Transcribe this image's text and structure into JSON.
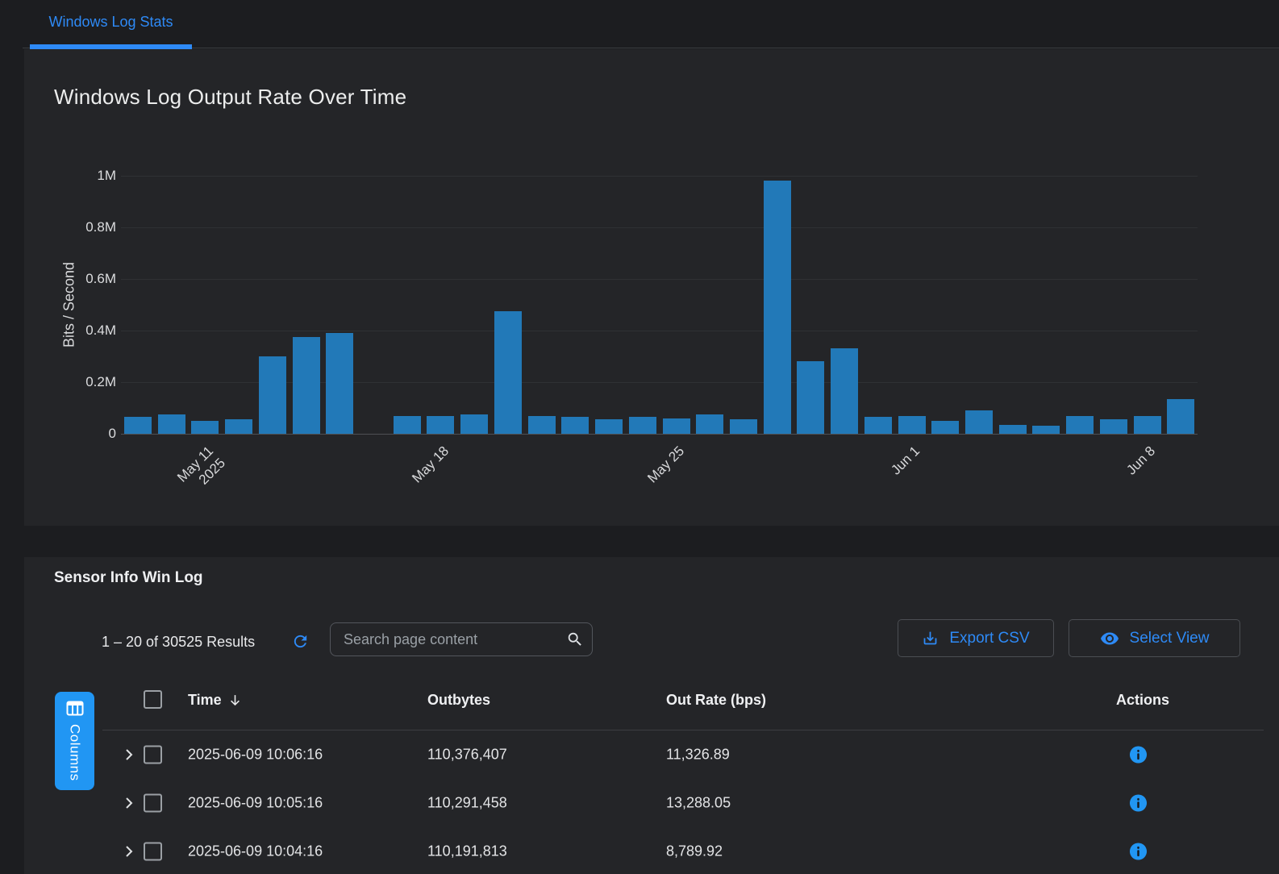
{
  "colors": {
    "accent": "#2e8af6",
    "primary_button": "#2196f3",
    "bar": "#2279b8",
    "page_background": "#1c1d20",
    "panel_background": "#242528",
    "gridline": "#2f3134",
    "axis_line": "#4e5054"
  },
  "tabs": [
    {
      "label": "Windows Log Stats",
      "active": true
    }
  ],
  "chart_data": {
    "type": "bar",
    "title": "Windows Log Output Rate Over Time",
    "xlabel": "",
    "ylabel": "Bits / Second",
    "ylim": [
      0,
      1000000
    ],
    "grid": true,
    "legend": false,
    "bar_color": "#2279b8",
    "x": [
      "2025-05-09",
      "2025-05-10",
      "2025-05-11",
      "2025-05-12",
      "2025-05-13",
      "2025-05-14",
      "2025-05-15",
      "2025-05-16",
      "2025-05-17",
      "2025-05-18",
      "2025-05-19",
      "2025-05-20",
      "2025-05-21",
      "2025-05-22",
      "2025-05-23",
      "2025-05-24",
      "2025-05-25",
      "2025-05-26",
      "2025-05-27",
      "2025-05-28",
      "2025-05-29",
      "2025-05-30",
      "2025-05-31",
      "2025-06-01",
      "2025-06-02",
      "2025-06-03",
      "2025-06-04",
      "2025-06-05",
      "2025-06-06",
      "2025-06-07",
      "2025-06-08",
      "2025-06-09"
    ],
    "values": [
      65000,
      75000,
      50000,
      55000,
      300000,
      375000,
      390000,
      null,
      70000,
      70000,
      75000,
      475000,
      70000,
      65000,
      55000,
      65000,
      60000,
      75000,
      55000,
      980000,
      280000,
      330000,
      65000,
      70000,
      50000,
      90000,
      35000,
      30000,
      70000,
      55000,
      70000,
      135000
    ],
    "yticks": [
      {
        "value": 0,
        "label": "0"
      },
      {
        "value": 200000,
        "label": "0.2M"
      },
      {
        "value": 400000,
        "label": "0.4M"
      },
      {
        "value": 600000,
        "label": "0.6M"
      },
      {
        "value": 800000,
        "label": "0.8M"
      },
      {
        "value": 1000000,
        "label": "1M"
      }
    ],
    "xticks": [
      {
        "index": 2,
        "label": "May 11",
        "sublabel": "2025"
      },
      {
        "index": 9,
        "label": "May 18"
      },
      {
        "index": 16,
        "label": "May 25"
      },
      {
        "index": 23,
        "label": "Jun 1"
      },
      {
        "index": 30,
        "label": "Jun 8"
      }
    ]
  },
  "table": {
    "title": "Sensor Info Win Log",
    "results_summary": "1 – 20 of 30525 Results",
    "search_placeholder": "Search page content",
    "export_label": "Export CSV",
    "select_view_label": "Select View",
    "columns_label": "Columns",
    "headers": [
      "Time",
      "Outbytes",
      "Out Rate (bps)",
      "Actions"
    ],
    "sort": {
      "column": "Time",
      "direction": "desc"
    },
    "rows": [
      {
        "time": "2025-06-09 10:06:16",
        "outbytes": "110,376,407",
        "out_rate_bps": "11,326.89"
      },
      {
        "time": "2025-06-09 10:05:16",
        "outbytes": "110,291,458",
        "out_rate_bps": "13,288.05"
      },
      {
        "time": "2025-06-09 10:04:16",
        "outbytes": "110,191,813",
        "out_rate_bps": "8,789.92"
      }
    ]
  }
}
